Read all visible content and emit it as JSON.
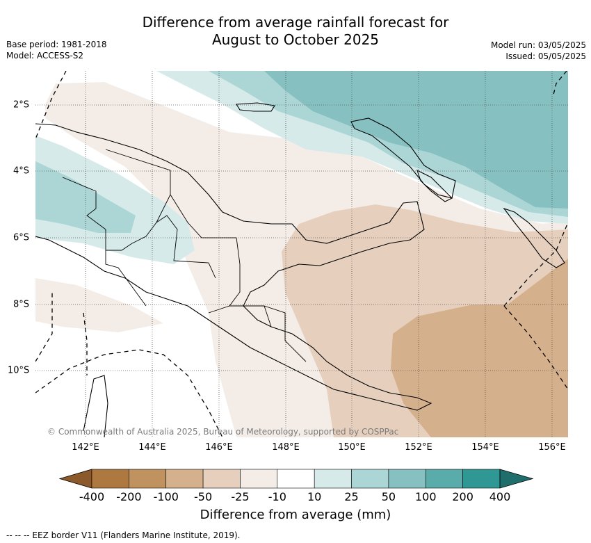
{
  "title_line1": "Difference from average rainfall forecast for",
  "title_line2": "August to October 2025",
  "meta_left": [
    "Base period: 1981-2018",
    "Model: ACCESS-S2"
  ],
  "meta_right": [
    "Model run: 03/05/2025",
    "Issued: 05/05/2025"
  ],
  "longitude_labels": [
    "142°E",
    "144°E",
    "146°E",
    "148°E",
    "150°E",
    "152°E",
    "154°E",
    "156°E"
  ],
  "latitude_labels": [
    "2°S",
    "4°S",
    "6°S",
    "8°S",
    "10°S"
  ],
  "copyright": "© Commonwealth of Australia 2025, Bureau of Meteorology, supported by COSPPac",
  "colorbar": {
    "ticks": [
      "-400",
      "-200",
      "-100",
      "-50",
      "-25",
      "-10",
      "10",
      "25",
      "50",
      "100",
      "200",
      "400"
    ],
    "colors": [
      "#8c5a2a",
      "#ae7841",
      "#c0925f",
      "#d4b08c",
      "#e6d0bd",
      "#f4ede7",
      "#ffffff",
      "#d6eaea",
      "#acd5d5",
      "#86c0c0",
      "#5aacab",
      "#2f9894",
      "#1f6e6b"
    ],
    "label": "Difference from average (mm)"
  },
  "footnote": "--  --  -- EEZ border V11 (Flanders Marine Institute, 2019)."
}
